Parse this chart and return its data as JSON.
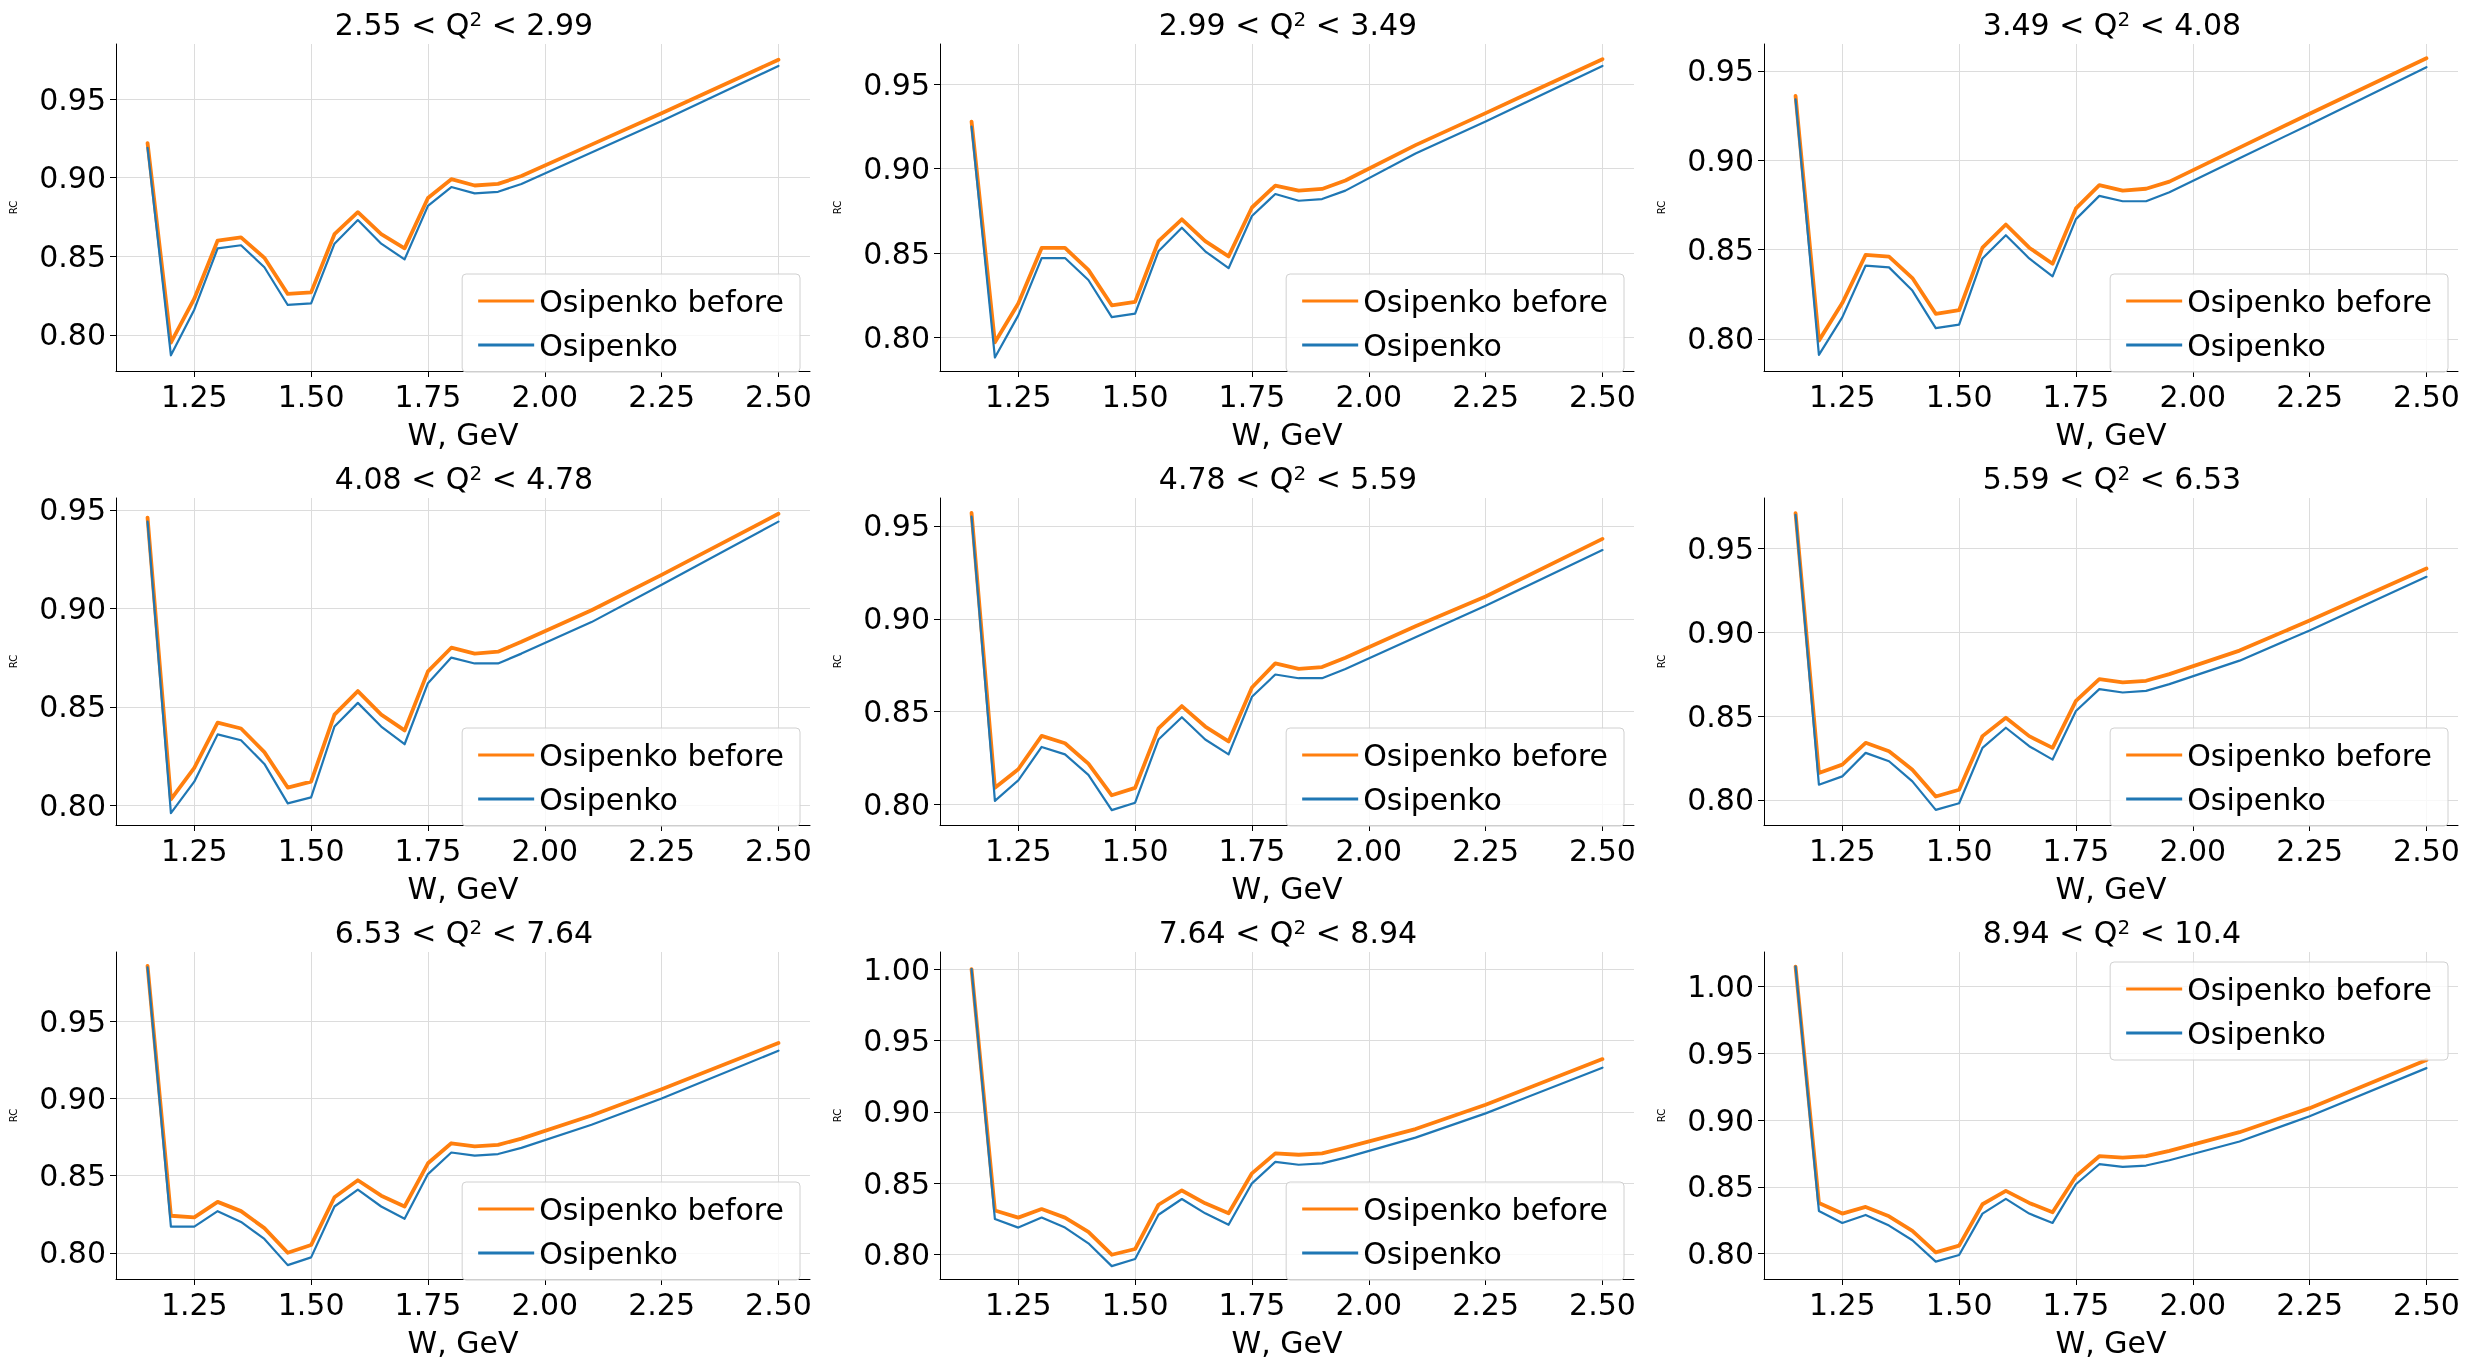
{
  "chart_data": [
    {
      "type": "line",
      "title": "2.55 < Q$^{2}$ < 2.99",
      "xlabel": "W, GeV",
      "ylabel": "RC",
      "x": [
        1.15,
        1.2,
        1.25,
        1.3,
        1.35,
        1.4,
        1.45,
        1.5,
        1.55,
        1.6,
        1.65,
        1.7,
        1.75,
        1.8,
        1.85,
        1.9,
        1.95,
        2.1,
        2.25,
        2.5
      ],
      "xlim": [
        1.0825,
        2.5675
      ],
      "xticks": [
        {
          "value": 1.25,
          "label": "1.25"
        },
        {
          "value": 1.5,
          "label": "1.50"
        },
        {
          "value": 1.75,
          "label": "1.75"
        },
        {
          "value": 2.0,
          "label": "2.00"
        },
        {
          "value": 2.25,
          "label": "2.25"
        },
        {
          "value": 2.5,
          "label": "2.50"
        }
      ],
      "ylim": [
        0.777,
        0.985
      ],
      "yticks": [
        {
          "value": 0.8,
          "label": "0.80"
        },
        {
          "value": 0.85,
          "label": "0.85"
        },
        {
          "value": 0.9,
          "label": "0.90"
        },
        {
          "value": 0.95,
          "label": "0.95"
        }
      ],
      "grid": true,
      "legend": "bottom right",
      "marker": "none",
      "line_style": "solid",
      "series": [
        {
          "name": "Osipenko before",
          "color": "#ff7f0e",
          "values": [
            0.922,
            0.795,
            0.823,
            0.86,
            0.862,
            0.849,
            0.826,
            0.827,
            0.864,
            0.878,
            0.864,
            0.855,
            0.887,
            0.899,
            0.895,
            0.896,
            0.901,
            0.921,
            0.941,
            0.975
          ]
        },
        {
          "name": "Osipenko",
          "color": "#1f77b4",
          "values": [
            0.919,
            0.787,
            0.816,
            0.855,
            0.857,
            0.843,
            0.819,
            0.82,
            0.858,
            0.873,
            0.858,
            0.848,
            0.882,
            0.894,
            0.89,
            0.891,
            0.896,
            0.916,
            0.936,
            0.971
          ]
        }
      ]
    },
    {
      "type": "line",
      "title": "2.99 < Q$^{2}$ < 3.49",
      "xlabel": "W, GeV",
      "ylabel": "RC",
      "x": [
        1.15,
        1.2,
        1.25,
        1.3,
        1.35,
        1.4,
        1.45,
        1.5,
        1.55,
        1.6,
        1.65,
        1.7,
        1.75,
        1.8,
        1.85,
        1.9,
        1.95,
        2.1,
        2.25,
        2.5
      ],
      "xlim": [
        1.0825,
        2.5675
      ],
      "xticks": [
        {
          "value": 1.25,
          "label": "1.25"
        },
        {
          "value": 1.5,
          "label": "1.50"
        },
        {
          "value": 1.75,
          "label": "1.75"
        },
        {
          "value": 2.0,
          "label": "2.00"
        },
        {
          "value": 2.25,
          "label": "2.25"
        },
        {
          "value": 2.5,
          "label": "2.50"
        }
      ],
      "ylim": [
        0.78,
        0.974
      ],
      "yticks": [
        {
          "value": 0.8,
          "label": "0.80"
        },
        {
          "value": 0.85,
          "label": "0.85"
        },
        {
          "value": 0.9,
          "label": "0.90"
        },
        {
          "value": 0.95,
          "label": "0.95"
        }
      ],
      "grid": true,
      "legend": "bottom right",
      "marker": "none",
      "line_style": "solid",
      "series": [
        {
          "name": "Osipenko before",
          "color": "#ff7f0e",
          "values": [
            0.928,
            0.797,
            0.82,
            0.853,
            0.853,
            0.84,
            0.819,
            0.821,
            0.857,
            0.87,
            0.857,
            0.848,
            0.877,
            0.89,
            0.887,
            0.888,
            0.893,
            0.914,
            0.933,
            0.965
          ]
        },
        {
          "name": "Osipenko",
          "color": "#1f77b4",
          "values": [
            0.925,
            0.788,
            0.813,
            0.847,
            0.847,
            0.834,
            0.812,
            0.814,
            0.851,
            0.865,
            0.851,
            0.841,
            0.872,
            0.885,
            0.881,
            0.882,
            0.887,
            0.909,
            0.928,
            0.961
          ]
        }
      ]
    },
    {
      "type": "line",
      "title": "3.49 < Q$^{2}$ < 4.08",
      "xlabel": "W, GeV",
      "ylabel": "RC",
      "x": [
        1.15,
        1.2,
        1.25,
        1.3,
        1.35,
        1.4,
        1.45,
        1.5,
        1.55,
        1.6,
        1.65,
        1.7,
        1.75,
        1.8,
        1.85,
        1.9,
        1.95,
        2.1,
        2.25,
        2.5
      ],
      "xlim": [
        1.0825,
        2.5675
      ],
      "xticks": [
        {
          "value": 1.25,
          "label": "1.25"
        },
        {
          "value": 1.5,
          "label": "1.50"
        },
        {
          "value": 1.75,
          "label": "1.75"
        },
        {
          "value": 2.0,
          "label": "2.00"
        },
        {
          "value": 2.25,
          "label": "2.25"
        },
        {
          "value": 2.5,
          "label": "2.50"
        }
      ],
      "ylim": [
        0.782,
        0.965
      ],
      "yticks": [
        {
          "value": 0.8,
          "label": "0.80"
        },
        {
          "value": 0.85,
          "label": "0.85"
        },
        {
          "value": 0.9,
          "label": "0.90"
        },
        {
          "value": 0.95,
          "label": "0.95"
        }
      ],
      "grid": true,
      "legend": "bottom right",
      "marker": "none",
      "line_style": "solid",
      "series": [
        {
          "name": "Osipenko before",
          "color": "#ff7f0e",
          "values": [
            0.936,
            0.799,
            0.82,
            0.847,
            0.846,
            0.834,
            0.814,
            0.816,
            0.851,
            0.864,
            0.851,
            0.842,
            0.873,
            0.886,
            0.883,
            0.884,
            0.888,
            0.907,
            0.926,
            0.957
          ]
        },
        {
          "name": "Osipenko",
          "color": "#1f77b4",
          "values": [
            0.934,
            0.791,
            0.812,
            0.841,
            0.84,
            0.827,
            0.806,
            0.808,
            0.845,
            0.858,
            0.845,
            0.835,
            0.867,
            0.88,
            0.877,
            0.877,
            0.882,
            0.901,
            0.92,
            0.952
          ]
        }
      ]
    },
    {
      "type": "line",
      "title": "4.08 < Q$^{2}$ < 4.78",
      "xlabel": "W, GeV",
      "ylabel": "RC",
      "x": [
        1.15,
        1.2,
        1.25,
        1.3,
        1.35,
        1.4,
        1.45,
        1.5,
        1.55,
        1.6,
        1.65,
        1.7,
        1.75,
        1.8,
        1.85,
        1.9,
        1.95,
        2.1,
        2.25,
        2.5
      ],
      "xlim": [
        1.0825,
        2.5675
      ],
      "xticks": [
        {
          "value": 1.25,
          "label": "1.25"
        },
        {
          "value": 1.5,
          "label": "1.50"
        },
        {
          "value": 1.75,
          "label": "1.75"
        },
        {
          "value": 2.0,
          "label": "2.00"
        },
        {
          "value": 2.25,
          "label": "2.25"
        },
        {
          "value": 2.5,
          "label": "2.50"
        }
      ],
      "ylim": [
        0.79,
        0.956
      ],
      "yticks": [
        {
          "value": 0.8,
          "label": "0.80"
        },
        {
          "value": 0.85,
          "label": "0.85"
        },
        {
          "value": 0.9,
          "label": "0.90"
        },
        {
          "value": 0.95,
          "label": "0.95"
        }
      ],
      "grid": true,
      "legend": "bottom right",
      "marker": "none",
      "line_style": "solid",
      "series": [
        {
          "name": "Osipenko before",
          "color": "#ff7f0e",
          "values": [
            0.946,
            0.803,
            0.819,
            0.842,
            0.839,
            0.827,
            0.809,
            0.812,
            0.846,
            0.858,
            0.846,
            0.838,
            0.868,
            0.88,
            0.877,
            0.878,
            0.883,
            0.899,
            0.917,
            0.948
          ]
        },
        {
          "name": "Osipenko",
          "color": "#1f77b4",
          "values": [
            0.944,
            0.796,
            0.812,
            0.836,
            0.833,
            0.821,
            0.801,
            0.804,
            0.84,
            0.852,
            0.84,
            0.831,
            0.862,
            0.875,
            0.872,
            0.872,
            0.877,
            0.893,
            0.912,
            0.944
          ]
        }
      ]
    },
    {
      "type": "line",
      "title": "4.78 < Q$^{2}$ < 5.59",
      "xlabel": "W, GeV",
      "ylabel": "RC",
      "x": [
        1.15,
        1.2,
        1.25,
        1.3,
        1.35,
        1.4,
        1.45,
        1.5,
        1.55,
        1.6,
        1.65,
        1.7,
        1.75,
        1.8,
        1.85,
        1.9,
        1.95,
        2.1,
        2.25,
        2.5
      ],
      "xlim": [
        1.0825,
        2.5675
      ],
      "xticks": [
        {
          "value": 1.25,
          "label": "1.25"
        },
        {
          "value": 1.5,
          "label": "1.50"
        },
        {
          "value": 1.75,
          "label": "1.75"
        },
        {
          "value": 2.0,
          "label": "2.00"
        },
        {
          "value": 2.25,
          "label": "2.25"
        },
        {
          "value": 2.5,
          "label": "2.50"
        }
      ],
      "ylim": [
        0.789,
        0.965
      ],
      "yticks": [
        {
          "value": 0.8,
          "label": "0.80"
        },
        {
          "value": 0.85,
          "label": "0.85"
        },
        {
          "value": 0.9,
          "label": "0.90"
        },
        {
          "value": 0.95,
          "label": "0.95"
        }
      ],
      "grid": true,
      "legend": "bottom right",
      "marker": "none",
      "line_style": "solid",
      "series": [
        {
          "name": "Osipenko before",
          "color": "#ff7f0e",
          "values": [
            0.957,
            0.809,
            0.819,
            0.837,
            0.833,
            0.822,
            0.805,
            0.809,
            0.841,
            0.853,
            0.842,
            0.834,
            0.863,
            0.876,
            0.873,
            0.874,
            0.879,
            0.896,
            0.912,
            0.943
          ]
        },
        {
          "name": "Osipenko",
          "color": "#1f77b4",
          "values": [
            0.955,
            0.802,
            0.813,
            0.831,
            0.827,
            0.816,
            0.797,
            0.801,
            0.835,
            0.847,
            0.835,
            0.827,
            0.858,
            0.87,
            0.868,
            0.868,
            0.873,
            0.89,
            0.907,
            0.937
          ]
        }
      ]
    },
    {
      "type": "line",
      "title": "5.59 < Q$^{2}$ < 6.53",
      "xlabel": "W, GeV",
      "ylabel": "RC",
      "x": [
        1.15,
        1.2,
        1.25,
        1.3,
        1.35,
        1.4,
        1.45,
        1.5,
        1.55,
        1.6,
        1.65,
        1.7,
        1.75,
        1.8,
        1.85,
        1.9,
        1.95,
        2.1,
        2.25,
        2.5
      ],
      "xlim": [
        1.0825,
        2.5675
      ],
      "xticks": [
        {
          "value": 1.25,
          "label": "1.25"
        },
        {
          "value": 1.5,
          "label": "1.50"
        },
        {
          "value": 1.75,
          "label": "1.75"
        },
        {
          "value": 2.0,
          "label": "2.00"
        },
        {
          "value": 2.25,
          "label": "2.25"
        },
        {
          "value": 2.5,
          "label": "2.50"
        }
      ],
      "ylim": [
        0.785,
        0.98
      ],
      "yticks": [
        {
          "value": 0.8,
          "label": "0.80"
        },
        {
          "value": 0.85,
          "label": "0.85"
        },
        {
          "value": 0.9,
          "label": "0.90"
        },
        {
          "value": 0.95,
          "label": "0.95"
        }
      ],
      "grid": true,
      "legend": "bottom right",
      "marker": "none",
      "line_style": "solid",
      "series": [
        {
          "name": "Osipenko before",
          "color": "#ff7f0e",
          "values": [
            0.971,
            0.816,
            0.821,
            0.834,
            0.829,
            0.818,
            0.802,
            0.806,
            0.838,
            0.849,
            0.838,
            0.831,
            0.859,
            0.872,
            0.87,
            0.871,
            0.875,
            0.889,
            0.907,
            0.938
          ]
        },
        {
          "name": "Osipenko",
          "color": "#1f77b4",
          "values": [
            0.97,
            0.809,
            0.814,
            0.828,
            0.823,
            0.811,
            0.794,
            0.798,
            0.831,
            0.843,
            0.832,
            0.824,
            0.853,
            0.866,
            0.864,
            0.865,
            0.869,
            0.883,
            0.901,
            0.933
          ]
        }
      ]
    },
    {
      "type": "line",
      "title": "6.53 < Q$^{2}$ < 7.64",
      "xlabel": "W, GeV",
      "ylabel": "RC",
      "x": [
        1.15,
        1.2,
        1.25,
        1.3,
        1.35,
        1.4,
        1.45,
        1.5,
        1.55,
        1.6,
        1.65,
        1.7,
        1.75,
        1.8,
        1.85,
        1.9,
        1.95,
        2.1,
        2.25,
        2.5
      ],
      "xlim": [
        1.0825,
        2.5675
      ],
      "xticks": [
        {
          "value": 1.25,
          "label": "1.25"
        },
        {
          "value": 1.5,
          "label": "1.50"
        },
        {
          "value": 1.75,
          "label": "1.75"
        },
        {
          "value": 2.0,
          "label": "2.00"
        },
        {
          "value": 2.25,
          "label": "2.25"
        },
        {
          "value": 2.5,
          "label": "2.50"
        }
      ],
      "ylim": [
        0.783,
        0.995
      ],
      "yticks": [
        {
          "value": 0.8,
          "label": "0.80"
        },
        {
          "value": 0.85,
          "label": "0.85"
        },
        {
          "value": 0.9,
          "label": "0.90"
        },
        {
          "value": 0.95,
          "label": "0.95"
        }
      ],
      "grid": true,
      "legend": "bottom right",
      "marker": "none",
      "line_style": "solid",
      "series": [
        {
          "name": "Osipenko before",
          "color": "#ff7f0e",
          "values": [
            0.986,
            0.824,
            0.823,
            0.833,
            0.827,
            0.816,
            0.8,
            0.805,
            0.836,
            0.847,
            0.837,
            0.83,
            0.858,
            0.871,
            0.869,
            0.87,
            0.874,
            0.889,
            0.906,
            0.936
          ]
        },
        {
          "name": "Osipenko",
          "color": "#1f77b4",
          "values": [
            0.985,
            0.817,
            0.817,
            0.827,
            0.82,
            0.809,
            0.792,
            0.797,
            0.83,
            0.841,
            0.83,
            0.822,
            0.851,
            0.865,
            0.863,
            0.864,
            0.868,
            0.883,
            0.9,
            0.931
          ]
        }
      ]
    },
    {
      "type": "line",
      "title": "7.64 < Q$^{2}$ < 8.94",
      "xlabel": "W, GeV",
      "ylabel": "RC",
      "x": [
        1.15,
        1.2,
        1.25,
        1.3,
        1.35,
        1.4,
        1.45,
        1.5,
        1.55,
        1.6,
        1.65,
        1.7,
        1.75,
        1.8,
        1.85,
        1.9,
        1.95,
        2.1,
        2.25,
        2.5
      ],
      "xlim": [
        1.0825,
        2.5675
      ],
      "xticks": [
        {
          "value": 1.25,
          "label": "1.25"
        },
        {
          "value": 1.5,
          "label": "1.50"
        },
        {
          "value": 1.75,
          "label": "1.75"
        },
        {
          "value": 2.0,
          "label": "2.00"
        },
        {
          "value": 2.25,
          "label": "2.25"
        },
        {
          "value": 2.5,
          "label": "2.50"
        }
      ],
      "ylim": [
        0.783,
        1.012
      ],
      "yticks": [
        {
          "value": 0.8,
          "label": "0.80"
        },
        {
          "value": 0.85,
          "label": "0.85"
        },
        {
          "value": 0.9,
          "label": "0.90"
        },
        {
          "value": 0.95,
          "label": "0.95"
        },
        {
          "value": 1.0,
          "label": "1.00"
        }
      ],
      "grid": true,
      "legend": "bottom right",
      "marker": "none",
      "line_style": "solid",
      "series": [
        {
          "name": "Osipenko before",
          "color": "#ff7f0e",
          "values": [
            1.0,
            0.831,
            0.826,
            0.832,
            0.826,
            0.816,
            0.8,
            0.804,
            0.835,
            0.845,
            0.836,
            0.829,
            0.857,
            0.871,
            0.87,
            0.871,
            0.875,
            0.888,
            0.905,
            0.937
          ]
        },
        {
          "name": "Osipenko",
          "color": "#1f77b4",
          "values": [
            1.0,
            0.825,
            0.819,
            0.826,
            0.819,
            0.808,
            0.792,
            0.797,
            0.828,
            0.839,
            0.829,
            0.821,
            0.85,
            0.865,
            0.863,
            0.864,
            0.868,
            0.882,
            0.899,
            0.931
          ]
        }
      ]
    },
    {
      "type": "line",
      "title": "8.94 < Q$^{2}$ < 10.4",
      "xlabel": "W, GeV",
      "ylabel": "RC",
      "x": [
        1.15,
        1.2,
        1.25,
        1.3,
        1.35,
        1.4,
        1.45,
        1.5,
        1.55,
        1.6,
        1.65,
        1.7,
        1.75,
        1.8,
        1.85,
        1.9,
        1.95,
        2.1,
        2.25,
        2.5
      ],
      "xlim": [
        1.0825,
        2.5675
      ],
      "xticks": [
        {
          "value": 1.25,
          "label": "1.25"
        },
        {
          "value": 1.5,
          "label": "1.50"
        },
        {
          "value": 1.75,
          "label": "1.75"
        },
        {
          "value": 2.0,
          "label": "2.00"
        },
        {
          "value": 2.25,
          "label": "2.25"
        },
        {
          "value": 2.5,
          "label": "2.50"
        }
      ],
      "ylim": [
        0.781,
        1.026
      ],
      "yticks": [
        {
          "value": 0.8,
          "label": "0.80"
        },
        {
          "value": 0.85,
          "label": "0.85"
        },
        {
          "value": 0.9,
          "label": "0.90"
        },
        {
          "value": 0.95,
          "label": "0.95"
        },
        {
          "value": 1.0,
          "label": "1.00"
        }
      ],
      "grid": true,
      "legend": "top right",
      "marker": "none",
      "line_style": "solid",
      "series": [
        {
          "name": "Osipenko before",
          "color": "#ff7f0e",
          "values": [
            1.015,
            0.838,
            0.83,
            0.835,
            0.828,
            0.817,
            0.801,
            0.806,
            0.837,
            0.847,
            0.838,
            0.831,
            0.858,
            0.873,
            0.872,
            0.873,
            0.877,
            0.891,
            0.909,
            0.945
          ]
        },
        {
          "name": "Osipenko",
          "color": "#1f77b4",
          "values": [
            1.015,
            0.832,
            0.823,
            0.829,
            0.821,
            0.81,
            0.794,
            0.799,
            0.83,
            0.841,
            0.83,
            0.823,
            0.852,
            0.867,
            0.865,
            0.866,
            0.87,
            0.884,
            0.903,
            0.939
          ]
        }
      ]
    }
  ]
}
